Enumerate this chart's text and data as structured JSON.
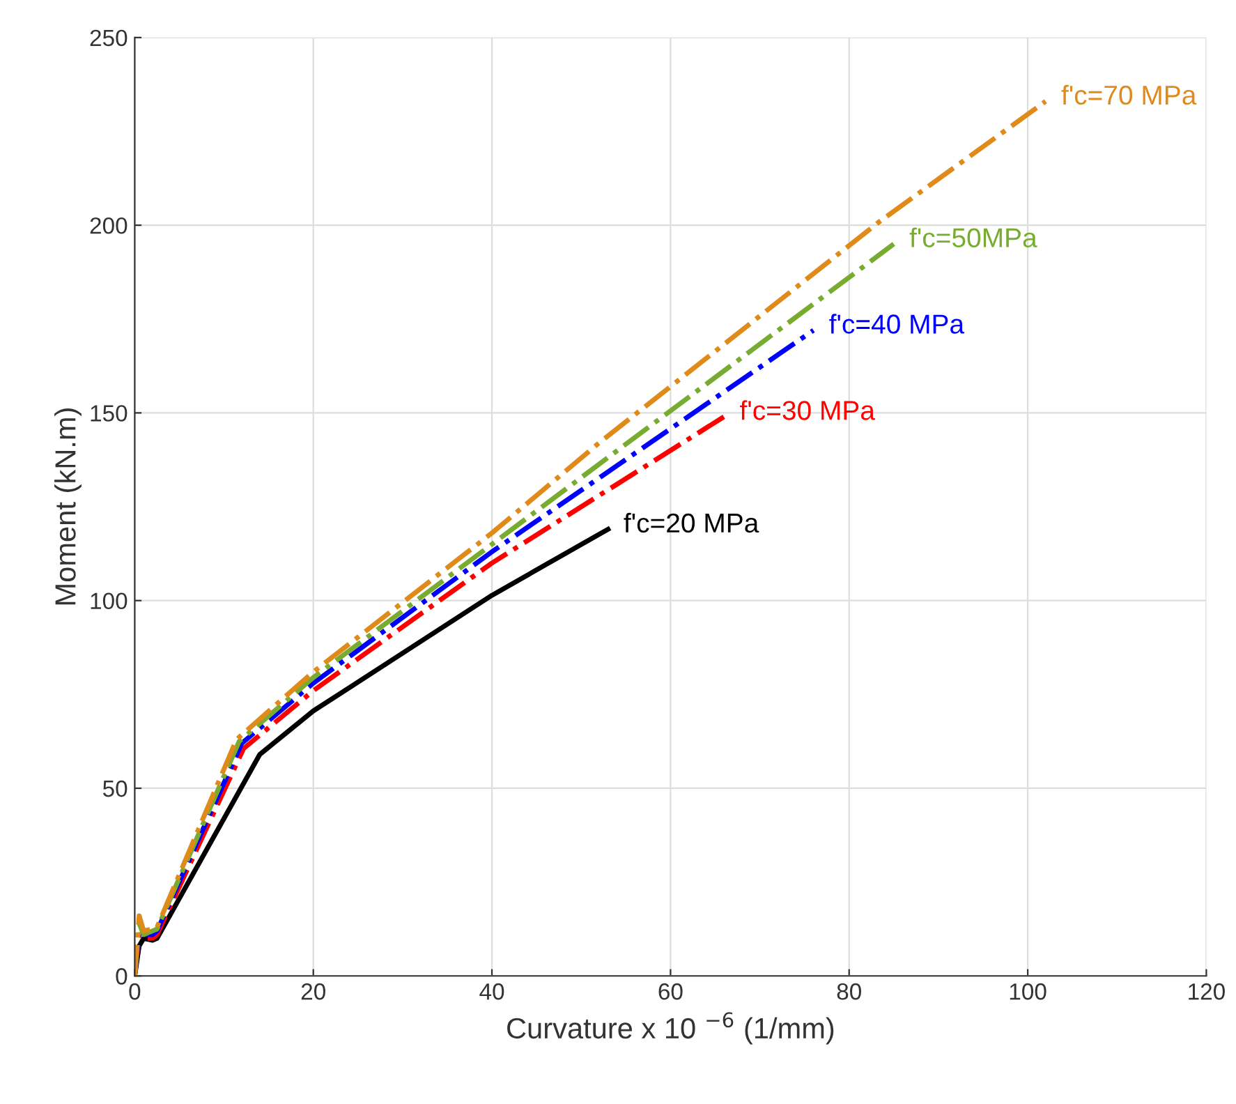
{
  "chart_data": {
    "type": "line",
    "xlabel": "Curvature x 10 $^{−6}$ (1/mm)",
    "ylabel": "Moment (kN.m)",
    "xlim": [
      0,
      120
    ],
    "ylim": [
      0,
      250
    ],
    "xticks": [
      0,
      20,
      40,
      60,
      80,
      100,
      120
    ],
    "yticks": [
      0,
      50,
      100,
      150,
      200,
      250
    ],
    "grid": true,
    "legend": false,
    "marker": "none",
    "series": [
      {
        "name": "f'c=20 MPa",
        "color": "#000000",
        "line_style": "solid",
        "x": [
          0,
          0.5,
          1,
          2,
          2.5,
          14,
          20,
          30,
          40,
          53
        ],
        "values": [
          0,
          8,
          10,
          9.5,
          10,
          59,
          70.6,
          86,
          101.4,
          119
        ]
      },
      {
        "name": "f'c=30 MPa",
        "color": "#ff0000",
        "line_style": "dashdot",
        "x": [
          0,
          0.5,
          1,
          2,
          2.5,
          12.2,
          20,
          40,
          66
        ],
        "values": [
          0,
          11,
          10,
          10,
          11,
          60.6,
          76,
          110,
          149
        ]
      },
      {
        "name": "f'c=40 MPa",
        "color": "#0000ff",
        "line_style": "dashdot",
        "x": [
          0,
          0.5,
          1,
          2,
          2.5,
          12,
          20,
          40,
          76
        ],
        "values": [
          0,
          12,
          11,
          11,
          12,
          62,
          78,
          113,
          172
        ]
      },
      {
        "name": "f'c=50MPa",
        "color": "#77ac30",
        "line_style": "dashdot",
        "x": [
          0,
          0.5,
          1,
          2,
          2.5,
          11.7,
          20,
          40,
          85
        ],
        "values": [
          0,
          14,
          11,
          12,
          12.5,
          62.5,
          79.5,
          115,
          195
        ]
      },
      {
        "name": "f'c=70 MPa",
        "color": "#e08a1a",
        "line_style": "dashdot",
        "x": [
          0,
          0.5,
          1,
          2,
          2.5,
          11.4,
          20,
          40,
          52,
          83.2,
          102
        ],
        "values": [
          0,
          16,
          12,
          12.5,
          13,
          63,
          81,
          118,
          142,
          200.6,
          233
        ]
      }
    ]
  }
}
